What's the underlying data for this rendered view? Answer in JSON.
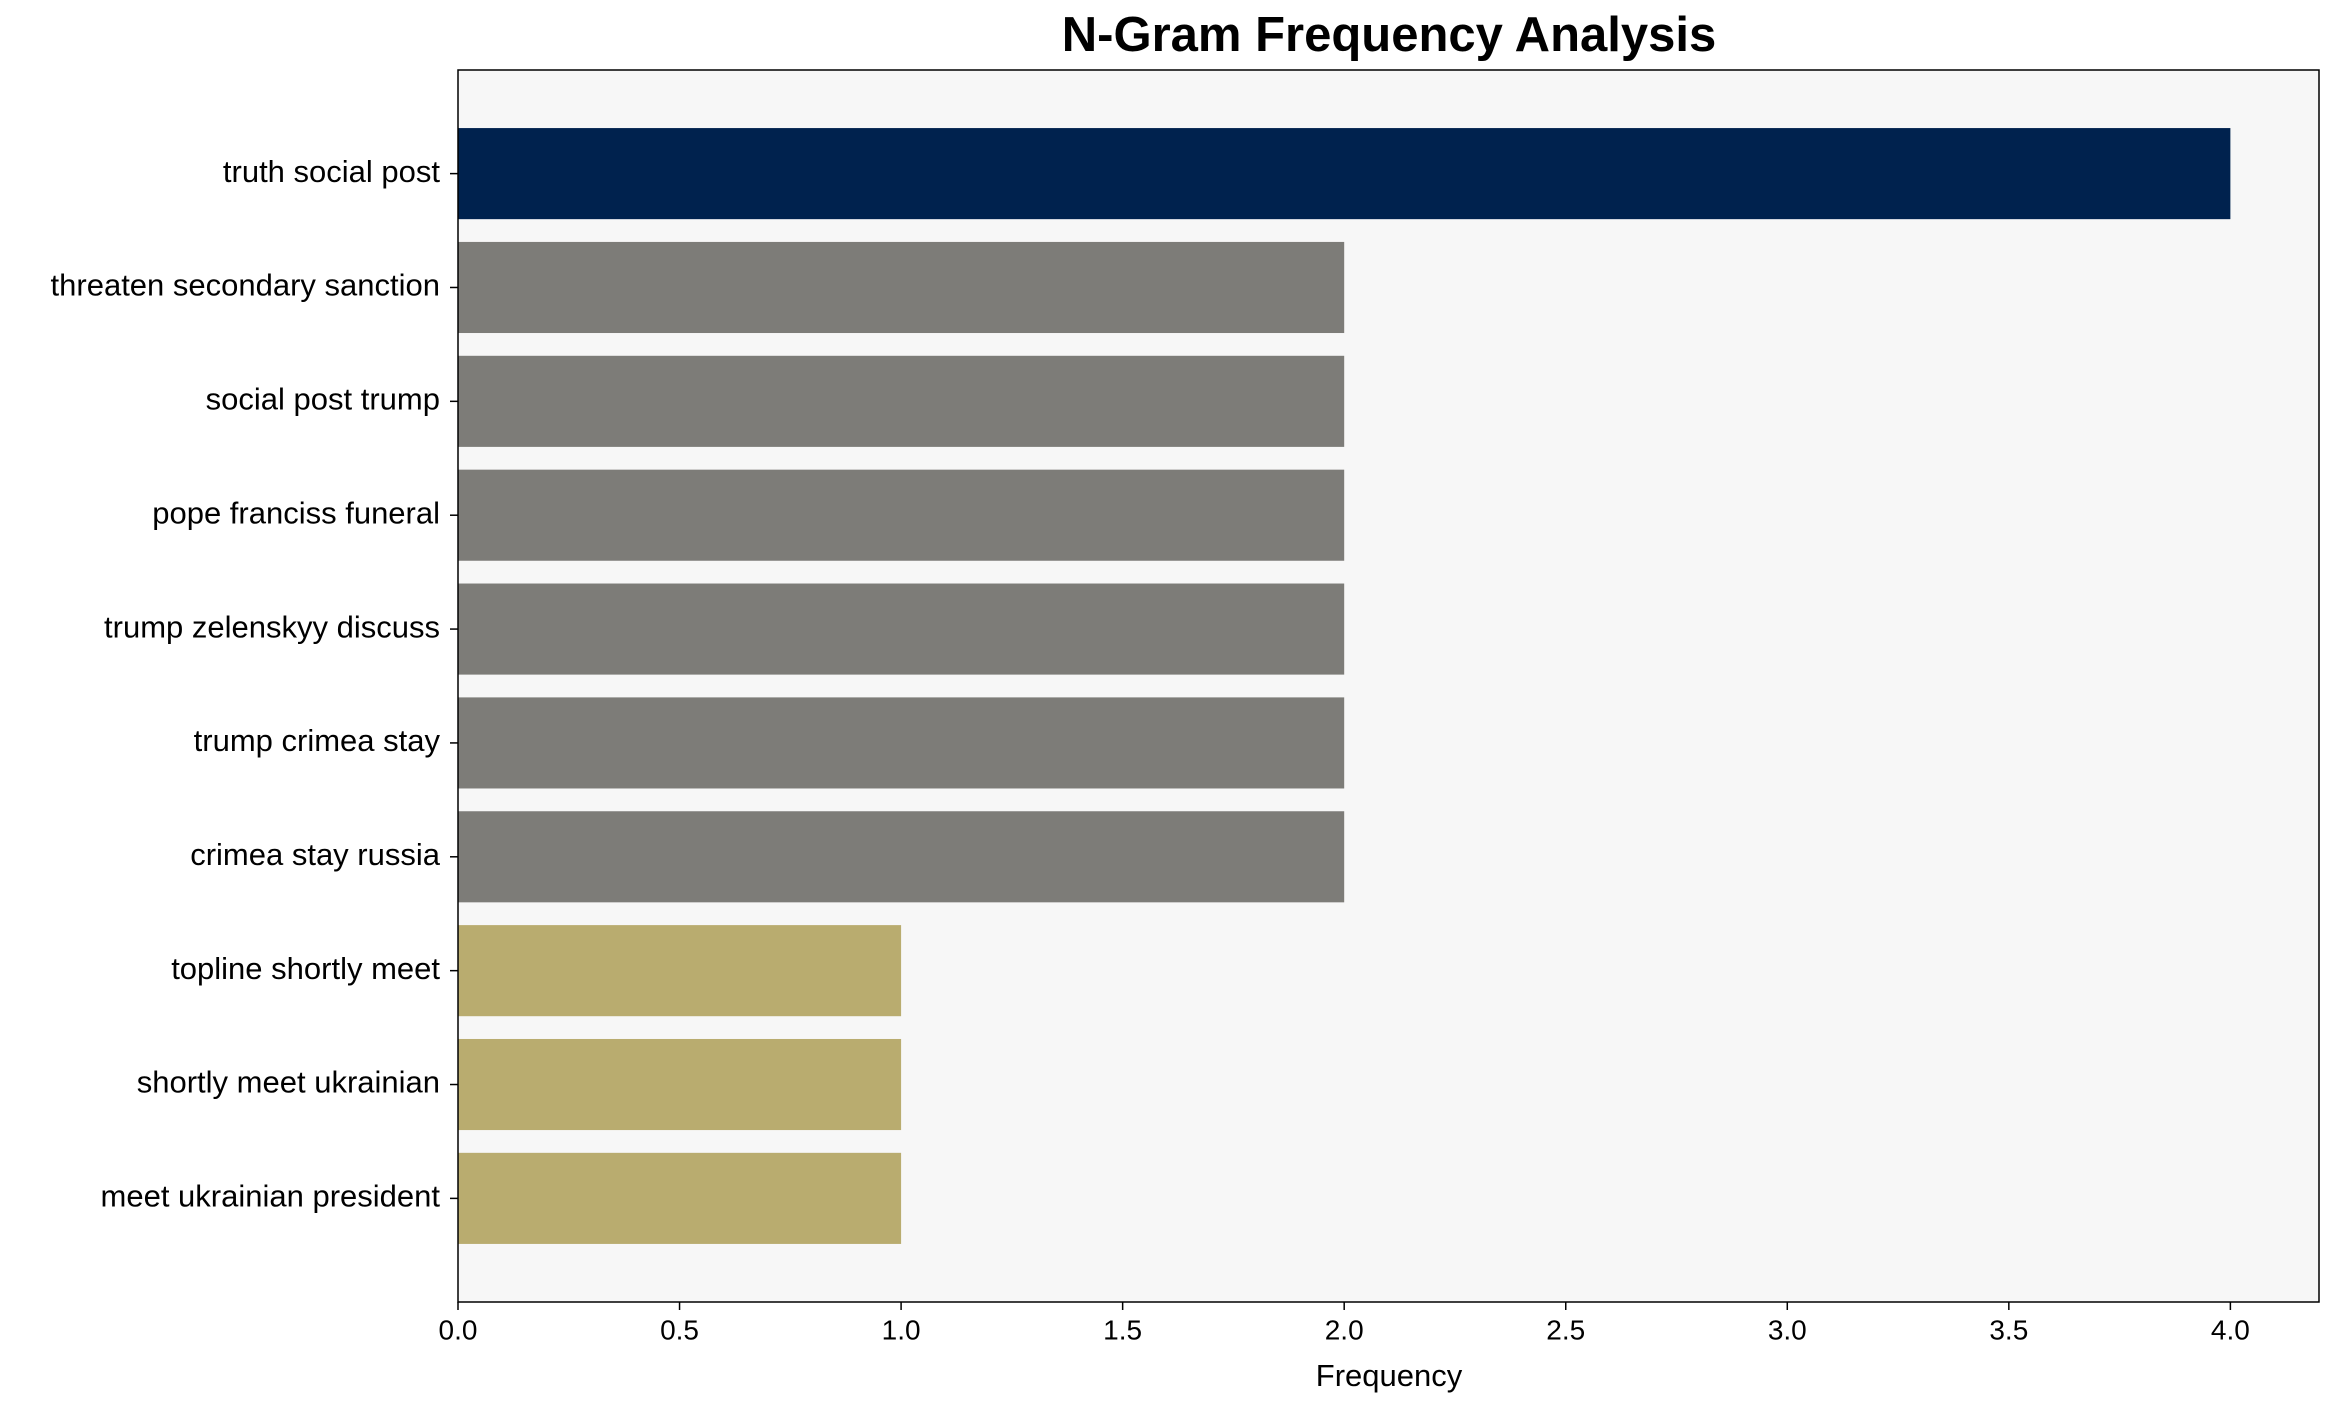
{
  "chart_data": {
    "type": "barh",
    "title": "N-Gram Frequency Analysis",
    "x_label": "Frequency",
    "categories": [
      "truth social post",
      "threaten secondary sanction",
      "social post trump",
      "pope franciss funeral",
      "trump zelenskyy discuss",
      "trump crimea stay",
      "crimea stay russia",
      "topline shortly meet",
      "shortly meet ukrainian",
      "meet ukrainian president"
    ],
    "values": [
      4,
      2,
      2,
      2,
      2,
      2,
      2,
      1,
      1,
      1
    ],
    "colors": [
      "#00224e",
      "#7d7c78",
      "#7d7c78",
      "#7d7c78",
      "#7d7c78",
      "#7d7c78",
      "#7d7c78",
      "#b9ac6f",
      "#b9ac6f",
      "#b9ac6f"
    ],
    "xlim": [
      0,
      4.2
    ],
    "xticks": [
      {
        "value": 0,
        "label": "0.0"
      },
      {
        "value": 0.5,
        "label": "0.5"
      },
      {
        "value": 1,
        "label": "1.0"
      },
      {
        "value": 1.5,
        "label": "1.5"
      },
      {
        "value": 2,
        "label": "2.0"
      },
      {
        "value": 2.5,
        "label": "2.5"
      },
      {
        "value": 3,
        "label": "3.0"
      },
      {
        "value": 3.5,
        "label": "3.5"
      },
      {
        "value": 4,
        "label": "4.0"
      }
    ],
    "grid": false
  }
}
